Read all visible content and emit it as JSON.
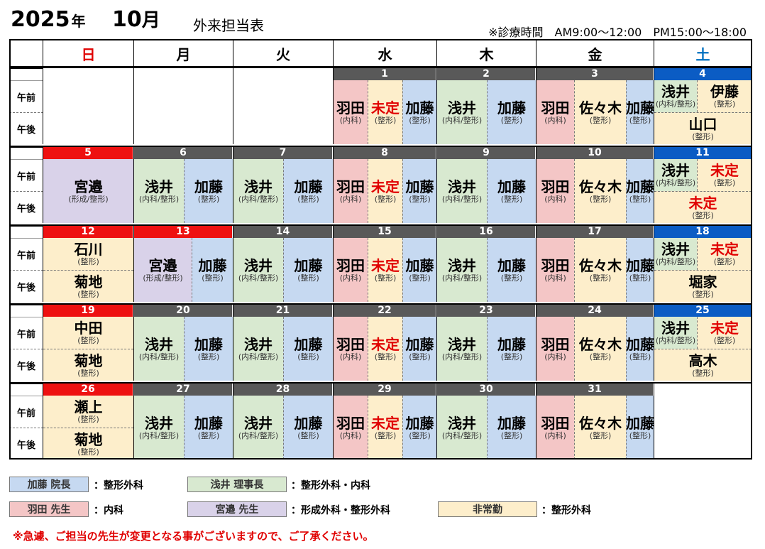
{
  "header": {
    "year": "2025",
    "year_unit": "年",
    "month": "10",
    "month_unit": "月",
    "title": "外来担当表",
    "hours": "※診療時間　AM9:00～12:00　PM15:00～18:00"
  },
  "weekdays": [
    "日",
    "月",
    "火",
    "水",
    "木",
    "金",
    "土"
  ],
  "am_label": "午前",
  "pm_label": "午後",
  "weeks": [
    [
      "",
      "",
      "",
      "1",
      "2",
      "3",
      "4"
    ],
    [
      "5",
      "6",
      "7",
      "8",
      "9",
      "10",
      "11"
    ],
    [
      "12",
      "13",
      "14",
      "15",
      "16",
      "17",
      "18"
    ],
    [
      "19",
      "20",
      "21",
      "22",
      "23",
      "24",
      "25"
    ],
    [
      "26",
      "27",
      "28",
      "29",
      "30",
      "31",
      ""
    ]
  ],
  "doctors": {
    "kato": {
      "name": "加藤",
      "dept": "(整形)"
    },
    "asai": {
      "name": "浅井",
      "dept": "(内科/整形)"
    },
    "haneda": {
      "name": "羽田",
      "dept": "(内科)"
    },
    "mitei": {
      "name": "未定",
      "dept": "(整形)"
    },
    "sasaki": {
      "name": "佐々木",
      "dept": "(整形)"
    },
    "miyabe": {
      "name": "宮邉",
      "dept": "(形成/整形)"
    },
    "ito": {
      "name": "伊藤",
      "dept": "(整形)"
    },
    "yamaguchi": {
      "name": "山口",
      "dept": "(整形)"
    },
    "ishikawa": {
      "name": "石川",
      "dept": "(整形)"
    },
    "kikuchi": {
      "name": "菊地",
      "dept": "(整形)"
    },
    "horiie": {
      "name": "堀家",
      "dept": "(整形)"
    },
    "nakata": {
      "name": "中田",
      "dept": "(整形)"
    },
    "takagi": {
      "name": "高木",
      "dept": "(整形)"
    },
    "segami": {
      "name": "瀬上",
      "dept": "(整形)"
    }
  },
  "legend": [
    {
      "box": "加藤 院長",
      "desc": "：整形外科",
      "color": "#c6d9f1"
    },
    {
      "box": "浅井 理事長",
      "desc": "：整形外科・内科",
      "color": "#d8e9d0"
    },
    {
      "box": "羽田 先生",
      "desc": "：内科",
      "color": "#f4c6c6"
    },
    {
      "box": "宮邉 先生",
      "desc": "：形成外科・整形外科",
      "color": "#d9d2e9"
    },
    {
      "box": "非常勤",
      "desc": "：整形外科",
      "color": "#fdeecb"
    }
  ],
  "notice": "※急遽、ご担当の先生が変更となる事がございますので、ご了承ください。",
  "colors": {
    "sunday_red": "#ee1111",
    "saturday_blue": "#0b5cc4",
    "weekday_gray": "#595959"
  }
}
